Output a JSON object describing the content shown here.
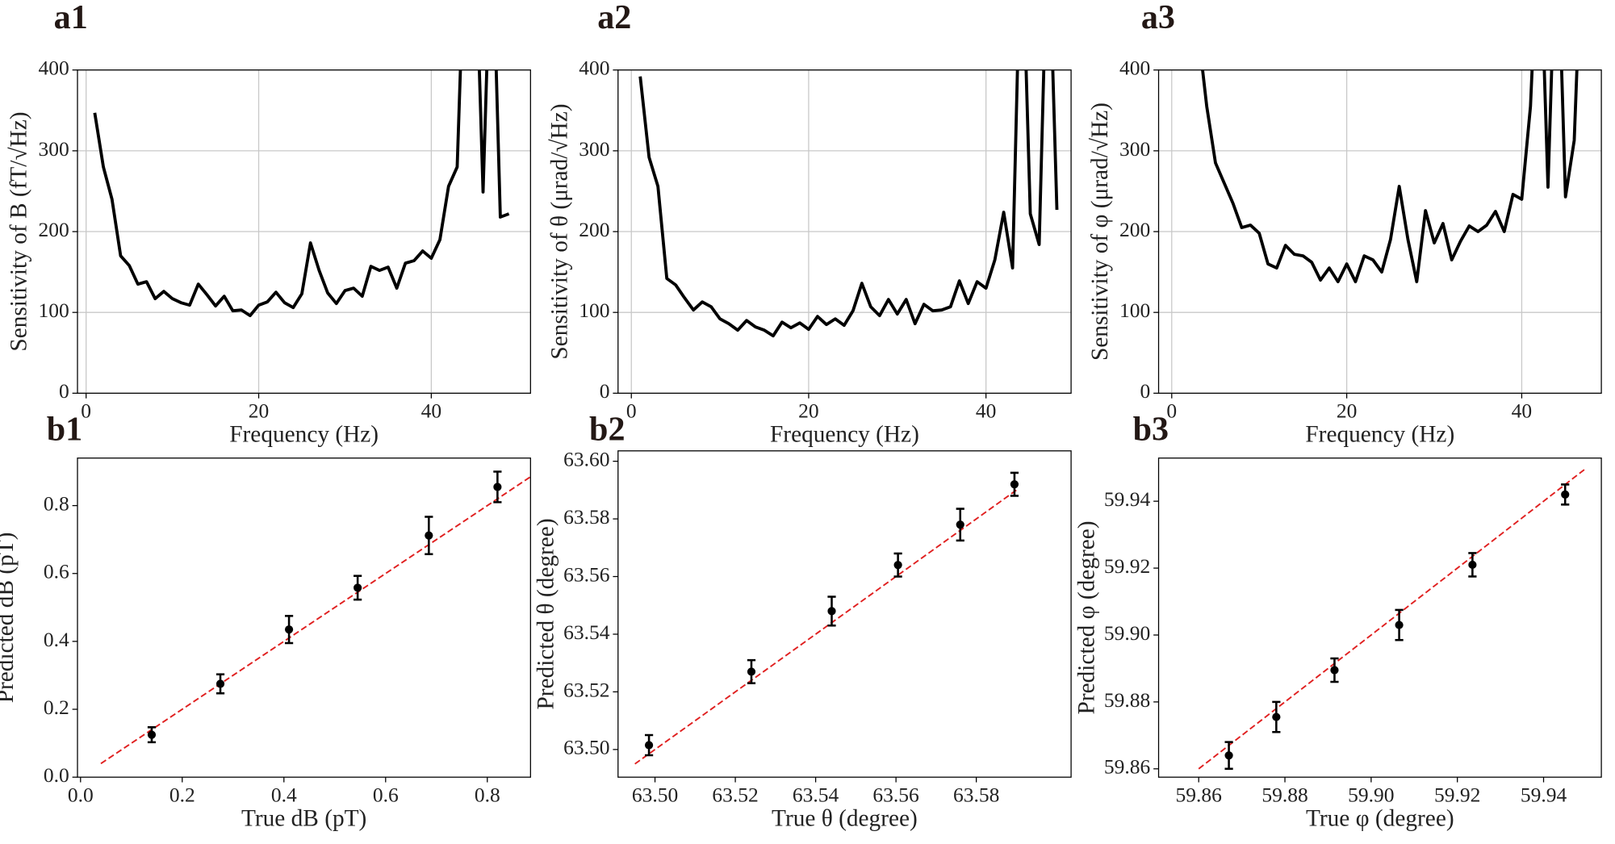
{
  "chart_data": [
    {
      "type": "line",
      "panel_label": "a1",
      "x_label": "Frequency (Hz)",
      "y_label": "Sensitivity of B  (fT/√Hz)",
      "color": "#000000",
      "grid": true,
      "x": [
        1,
        2,
        3,
        4,
        5,
        6,
        7,
        8,
        9,
        10,
        11,
        12,
        13,
        14,
        15,
        16,
        17,
        18,
        19,
        20,
        21,
        22,
        23,
        24,
        25,
        26,
        27,
        28,
        29,
        30,
        31,
        32,
        33,
        34,
        35,
        36,
        37,
        38,
        39,
        40,
        41,
        42,
        43,
        44,
        45,
        46,
        47,
        48,
        49
      ],
      "values": [
        347,
        280,
        240,
        170,
        158,
        135,
        138,
        117,
        126,
        117,
        112,
        109,
        135,
        122,
        108,
        120,
        102,
        103,
        96,
        109,
        113,
        125,
        112,
        106,
        123,
        186,
        152,
        124,
        111,
        127,
        130,
        120,
        157,
        152,
        156,
        130,
        161,
        164,
        176,
        167,
        190,
        256,
        280,
        600,
        600,
        249,
        600,
        218,
        222
      ],
      "xlim": [
        -1,
        51.5
      ],
      "ylim": [
        0,
        400
      ],
      "xticks": [
        0,
        20,
        40
      ],
      "yticks": [
        0,
        100,
        200,
        300,
        400
      ]
    },
    {
      "type": "line",
      "panel_label": "a2",
      "x_label": "Frequency (Hz)",
      "y_label": "Sensitivity of θ  (μrad/√Hz)",
      "color": "#000000",
      "grid": true,
      "x": [
        1,
        2,
        3,
        4,
        5,
        6,
        7,
        8,
        9,
        10,
        11,
        12,
        13,
        14,
        15,
        16,
        17,
        18,
        19,
        20,
        21,
        22,
        23,
        24,
        25,
        26,
        27,
        28,
        29,
        30,
        31,
        32,
        33,
        34,
        35,
        36,
        37,
        38,
        39,
        40,
        41,
        42,
        43,
        44,
        45,
        46,
        47,
        48
      ],
      "values": [
        392,
        292,
        256,
        142,
        134,
        118,
        103,
        113,
        107,
        92,
        86,
        78,
        90,
        82,
        78,
        71,
        88,
        81,
        87,
        79,
        95,
        85,
        92,
        84,
        102,
        136,
        107,
        96,
        116,
        98,
        116,
        86,
        110,
        102,
        103,
        107,
        139,
        111,
        138,
        130,
        165,
        224,
        155,
        600,
        222,
        184,
        600,
        227
      ],
      "xlim": [
        -1.5,
        49.6
      ],
      "ylim": [
        0,
        400
      ],
      "xticks": [
        0,
        20,
        40
      ],
      "yticks": [
        0,
        100,
        200,
        300,
        400
      ]
    },
    {
      "type": "line",
      "panel_label": "a3",
      "x_label": "Frequency (Hz)",
      "y_label": "Sensitivity of φ  (μrad/√Hz)",
      "color": "#000000",
      "grid": true,
      "x": [
        3,
        4,
        5,
        6,
        7,
        8,
        9,
        10,
        11,
        12,
        13,
        14,
        15,
        16,
        17,
        18,
        19,
        20,
        21,
        22,
        23,
        24,
        25,
        26,
        27,
        28,
        29,
        30,
        31,
        32,
        33,
        34,
        35,
        36,
        37,
        38,
        39,
        40,
        41,
        42,
        43,
        44,
        45,
        46,
        47
      ],
      "values": [
        450,
        355,
        285,
        260,
        235,
        205,
        208,
        198,
        160,
        155,
        183,
        172,
        170,
        162,
        140,
        155,
        138,
        160,
        138,
        170,
        165,
        150,
        190,
        256,
        190,
        138,
        226,
        186,
        210,
        165,
        188,
        207,
        200,
        208,
        225,
        200,
        246,
        240,
        355,
        600,
        255,
        600,
        243,
        313,
        600
      ],
      "xlim": [
        -1.5,
        49.1
      ],
      "ylim": [
        0,
        400
      ],
      "xticks": [
        0,
        20,
        40
      ],
      "yticks": [
        0,
        100,
        200,
        300,
        400
      ]
    },
    {
      "type": "scatter",
      "panel_label": "b1",
      "x_label": "True dB (pT)",
      "y_label": "Predicted  dB  (pT)",
      "color": "#000000",
      "x": [
        0.14,
        0.275,
        0.41,
        0.545,
        0.685,
        0.82
      ],
      "values": [
        0.125,
        0.275,
        0.435,
        0.558,
        0.712,
        0.855
      ],
      "errors": [
        0.022,
        0.028,
        0.04,
        0.035,
        0.055,
        0.045
      ],
      "reference_line": {
        "x": [
          0.04,
          0.9
        ],
        "values": [
          0.04,
          0.9
        ],
        "color": "#e02020"
      },
      "xlim": [
        -0.006,
        0.885
      ],
      "ylim": [
        0,
        0.94
      ],
      "xticks": [
        {
          "value": 0,
          "label": "0.0"
        },
        {
          "value": 0.2,
          "label": "0.2"
        },
        {
          "value": 0.4,
          "label": "0.4"
        },
        {
          "value": 0.6,
          "label": "0.6"
        },
        {
          "value": 0.8,
          "label": "0.8"
        }
      ],
      "yticks": [
        {
          "value": 0,
          "label": "0.0"
        },
        {
          "value": 0.2,
          "label": "0.2"
        },
        {
          "value": 0.4,
          "label": "0.4"
        },
        {
          "value": 0.6,
          "label": "0.6"
        },
        {
          "value": 0.8,
          "label": "0.8"
        }
      ]
    },
    {
      "type": "scatter",
      "panel_label": "b2",
      "x_label": "True θ (degree)",
      "y_label": "Predicted  θ  (degree)",
      "color": "#000000",
      "x": [
        63.4985,
        63.524,
        63.544,
        63.5605,
        63.576,
        63.5895
      ],
      "values": [
        63.5015,
        63.527,
        63.548,
        63.564,
        63.578,
        63.592
      ],
      "errors": [
        0.0035,
        0.004,
        0.005,
        0.004,
        0.0055,
        0.004
      ],
      "reference_line": {
        "x": [
          63.495,
          63.59
        ],
        "values": [
          63.495,
          63.59
        ],
        "color": "#e02020"
      },
      "xlim": [
        63.4908,
        63.6036
      ],
      "ylim": [
        63.4904,
        63.6036
      ],
      "xticks": [
        {
          "value": 63.5,
          "label": "63.50"
        },
        {
          "value": 63.52,
          "label": "63.52"
        },
        {
          "value": 63.54,
          "label": "63.54"
        },
        {
          "value": 63.56,
          "label": "63.56"
        },
        {
          "value": 63.58,
          "label": "63.58"
        }
      ],
      "yticks": [
        {
          "value": 63.5,
          "label": "63.50"
        },
        {
          "value": 63.52,
          "label": "63.52"
        },
        {
          "value": 63.54,
          "label": "63.54"
        },
        {
          "value": 63.56,
          "label": "63.56"
        },
        {
          "value": 63.58,
          "label": "63.58"
        },
        {
          "value": 63.6,
          "label": "63.60"
        }
      ]
    },
    {
      "type": "scatter",
      "panel_label": "b3",
      "x_label": "True φ (degree)",
      "y_label": "Predicted  φ  (degree)",
      "color": "#000000",
      "x": [
        59.867,
        59.878,
        59.8915,
        59.9065,
        59.9235,
        59.945
      ],
      "values": [
        59.864,
        59.8755,
        59.8895,
        59.903,
        59.921,
        59.942
      ],
      "errors": [
        0.004,
        0.0045,
        0.0035,
        0.0045,
        0.0035,
        0.003
      ],
      "reference_line": {
        "x": [
          59.86,
          59.95
        ],
        "values": [
          59.86,
          59.95
        ],
        "color": "#e02020"
      },
      "xlim": [
        59.8507,
        59.9534
      ],
      "ylim": [
        59.8575,
        59.9529
      ],
      "xticks": [
        {
          "value": 59.86,
          "label": "59.86"
        },
        {
          "value": 59.88,
          "label": "59.88"
        },
        {
          "value": 59.9,
          "label": "59.90"
        },
        {
          "value": 59.92,
          "label": "59.92"
        },
        {
          "value": 59.94,
          "label": "59.94"
        }
      ],
      "yticks": [
        {
          "value": 59.86,
          "label": "59.86"
        },
        {
          "value": 59.88,
          "label": "59.88"
        },
        {
          "value": 59.9,
          "label": "59.90"
        },
        {
          "value": 59.92,
          "label": "59.92"
        },
        {
          "value": 59.94,
          "label": "59.94"
        }
      ]
    }
  ]
}
